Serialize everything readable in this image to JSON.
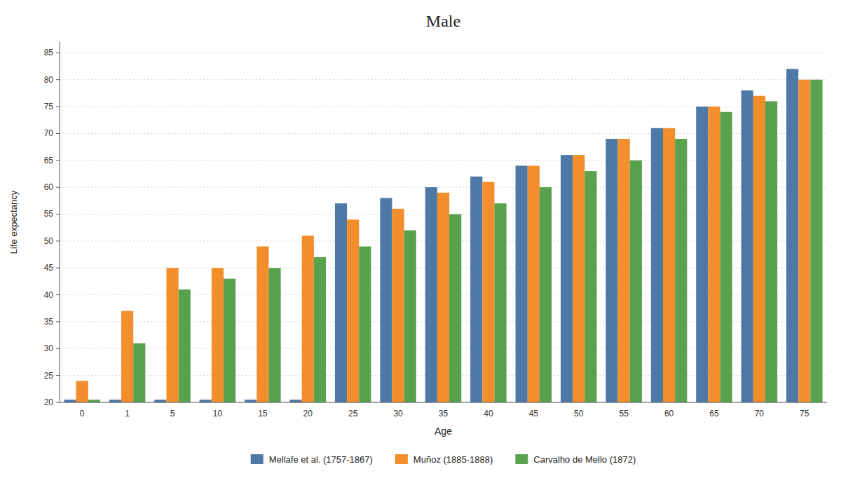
{
  "chart_data": {
    "type": "bar",
    "title": "Male",
    "xlabel": "Age",
    "ylabel": "Life expectancy",
    "categories": [
      "0",
      "1",
      "5",
      "10",
      "15",
      "20",
      "25",
      "30",
      "35",
      "40",
      "45",
      "50",
      "55",
      "60",
      "65",
      "70",
      "75"
    ],
    "series": [
      {
        "name": "Mellafe et al. (1757-1867)",
        "color": "#4e79a7",
        "values": [
          20.5,
          20.5,
          20.5,
          20.5,
          20.5,
          20.5,
          57,
          58,
          60,
          62,
          64,
          66,
          69,
          71,
          75,
          78,
          82
        ]
      },
      {
        "name": "Muñoz (1885-1888)",
        "color": "#f28e2b",
        "values": [
          24,
          37,
          45,
          45,
          49,
          51,
          54,
          56,
          59,
          61,
          64,
          66,
          69,
          71,
          75,
          77,
          80
        ]
      },
      {
        "name": "Carvalho de Mello (1872)",
        "color": "#59a14f",
        "values": [
          20.5,
          31,
          41,
          43,
          45,
          47,
          49,
          52,
          55,
          57,
          60,
          63,
          65,
          69,
          74,
          76,
          80
        ]
      }
    ],
    "ylim": [
      20,
      87
    ],
    "yticks": [
      20,
      25,
      30,
      35,
      40,
      45,
      50,
      55,
      60,
      65,
      70,
      75,
      80,
      85
    ],
    "grid": true,
    "legend": "bottom"
  }
}
